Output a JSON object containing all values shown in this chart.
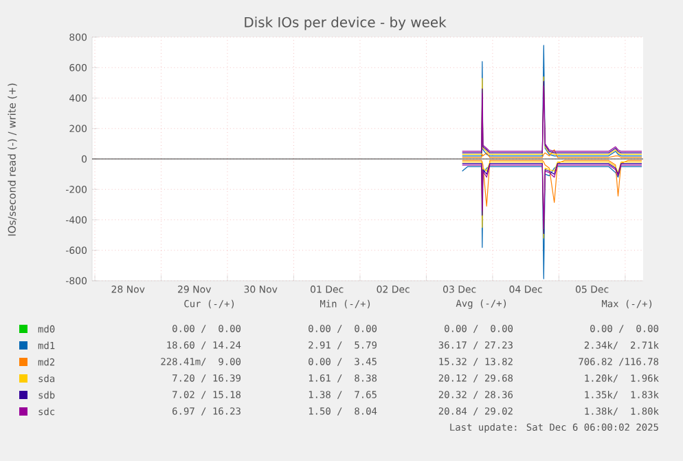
{
  "chart_data": {
    "type": "line",
    "title": "Disk IOs per device - by week",
    "ylabel": "IOs/second read (-) / write (+)",
    "x": [
      "2025-12-03T13:00",
      "2025-12-03T15:00",
      "2025-12-03T17:00",
      "2025-12-03T19:00",
      "2025-12-03T20:00",
      "2025-12-03T20:15",
      "2025-12-03T20:30",
      "2025-12-03T21:50",
      "2025-12-03T23:00",
      "2025-12-04T01:00",
      "2025-12-04T04:00",
      "2025-12-04T07:00",
      "2025-12-04T10:00",
      "2025-12-04T13:00",
      "2025-12-04T16:00",
      "2025-12-04T18:00",
      "2025-12-04T18:30",
      "2025-12-04T19:00",
      "2025-12-04T20:30",
      "2025-12-04T22:20",
      "2025-12-04T23:30",
      "2025-12-05T02:00",
      "2025-12-05T06:00",
      "2025-12-05T10:00",
      "2025-12-05T14:00",
      "2025-12-05T18:00",
      "2025-12-05T20:30",
      "2025-12-05T21:25",
      "2025-12-05T22:30",
      "2025-12-06T01:00",
      "2025-12-06T04:00",
      "2025-12-06T06:00"
    ],
    "series": [
      {
        "name": "md0",
        "color": "#00cc00",
        "values": [
          null,
          null,
          null,
          null,
          null,
          null,
          null,
          null,
          null,
          null,
          null,
          null,
          null,
          null,
          null,
          null,
          null,
          null,
          null,
          null,
          null,
          null,
          null,
          null,
          null,
          null,
          null,
          null,
          null,
          null,
          null,
          null
        ]
      },
      {
        "name": "md1",
        "color": "#0066b3",
        "values": [
          20,
          20,
          20,
          20,
          20,
          640,
          60,
          30,
          20,
          20,
          20,
          20,
          20,
          20,
          20,
          20,
          746,
          70,
          30,
          20,
          20,
          20,
          20,
          20,
          20,
          20,
          50,
          30,
          20,
          20,
          20,
          20
        ]
      },
      {
        "color": "#0066b3",
        "values": [
          -80,
          -50,
          -50,
          -50,
          -50,
          -582,
          -100,
          -60,
          -50,
          -50,
          -50,
          -50,
          -50,
          -50,
          -50,
          -50,
          -787,
          -100,
          -110,
          -60,
          -50,
          -50,
          -50,
          -50,
          -50,
          -50,
          -90,
          -120,
          -50,
          -50,
          -50,
          -50
        ]
      },
      {
        "name": "md2",
        "color": "#ff8000",
        "values": [
          10,
          10,
          10,
          10,
          10,
          30,
          20,
          40,
          10,
          10,
          10,
          10,
          10,
          10,
          10,
          10,
          30,
          40,
          20,
          60,
          10,
          10,
          10,
          10,
          10,
          10,
          20,
          20,
          10,
          10,
          10,
          10
        ]
      },
      {
        "color": "#ff8000",
        "values": [
          -10,
          -10,
          -10,
          -10,
          -10,
          -20,
          -40,
          -310,
          -10,
          -10,
          -10,
          -10,
          -10,
          -10,
          -10,
          -10,
          -20,
          -40,
          -60,
          -286,
          -30,
          -10,
          -10,
          -10,
          -10,
          -10,
          -40,
          -244,
          -30,
          -10,
          -10,
          -10
        ]
      },
      {
        "name": "sda",
        "color": "#ffcc00",
        "values": [
          30,
          30,
          30,
          30,
          30,
          530,
          70,
          50,
          30,
          30,
          30,
          30,
          30,
          30,
          30,
          30,
          540,
          80,
          40,
          30,
          30,
          30,
          30,
          30,
          30,
          30,
          60,
          40,
          30,
          30,
          30,
          30
        ]
      },
      {
        "color": "#ffcc00",
        "values": [
          -20,
          -20,
          -20,
          -20,
          -20,
          -450,
          -60,
          -80,
          -20,
          -20,
          -20,
          -20,
          -20,
          -20,
          -20,
          -20,
          -520,
          -60,
          -70,
          -80,
          -20,
          -20,
          -20,
          -20,
          -20,
          -20,
          -50,
          -90,
          -20,
          -20,
          -20,
          -20
        ]
      },
      {
        "name": "sdb",
        "color": "#330099",
        "values": [
          40,
          40,
          40,
          40,
          40,
          460,
          80,
          60,
          40,
          40,
          40,
          40,
          40,
          40,
          40,
          40,
          510,
          90,
          50,
          40,
          40,
          40,
          40,
          40,
          40,
          40,
          70,
          50,
          40,
          40,
          40,
          40
        ]
      },
      {
        "color": "#330099",
        "values": [
          -30,
          -30,
          -30,
          -30,
          -30,
          -370,
          -70,
          -100,
          -30,
          -30,
          -30,
          -30,
          -30,
          -30,
          -30,
          -30,
          -490,
          -70,
          -80,
          -100,
          -30,
          -30,
          -30,
          -30,
          -30,
          -30,
          -60,
          -100,
          -30,
          -30,
          -30,
          -30
        ]
      },
      {
        "name": "sdc",
        "color": "#990099",
        "values": [
          50,
          50,
          50,
          50,
          50,
          430,
          90,
          70,
          50,
          50,
          50,
          50,
          50,
          50,
          50,
          50,
          480,
          100,
          60,
          50,
          50,
          50,
          50,
          50,
          50,
          50,
          80,
          60,
          50,
          50,
          50,
          50
        ]
      },
      {
        "color": "#990099",
        "values": [
          -40,
          -40,
          -40,
          -40,
          -40,
          -340,
          -80,
          -120,
          -40,
          -40,
          -40,
          -40,
          -40,
          -40,
          -40,
          -40,
          -460,
          -80,
          -90,
          -120,
          -40,
          -40,
          -40,
          -40,
          -40,
          -40,
          -70,
          -110,
          -40,
          -40,
          -40,
          -40
        ]
      }
    ],
    "xlim": [
      "2025-11-27T23:00",
      "2025-12-06T06:30"
    ],
    "xticks": [
      {
        "value": "2025-11-28T00:00",
        "label": null
      },
      {
        "value": "2025-11-28T12:00",
        "label": "28 Nov"
      },
      {
        "value": "2025-11-29T00:00",
        "label": null
      },
      {
        "value": "2025-11-29T12:00",
        "label": "29 Nov"
      },
      {
        "value": "2025-11-30T00:00",
        "label": null
      },
      {
        "value": "2025-11-30T12:00",
        "label": "30 Nov"
      },
      {
        "value": "2025-12-01T00:00",
        "label": null
      },
      {
        "value": "2025-12-01T12:00",
        "label": "01 Dec"
      },
      {
        "value": "2025-12-02T00:00",
        "label": null
      },
      {
        "value": "2025-12-02T12:00",
        "label": "02 Dec"
      },
      {
        "value": "2025-12-03T00:00",
        "label": null
      },
      {
        "value": "2025-12-03T12:00",
        "label": "03 Dec"
      },
      {
        "value": "2025-12-04T00:00",
        "label": null
      },
      {
        "value": "2025-12-04T12:00",
        "label": "04 Dec"
      },
      {
        "value": "2025-12-05T00:00",
        "label": null
      },
      {
        "value": "2025-12-05T12:00",
        "label": "05 Dec"
      },
      {
        "value": "2025-12-06T00:00",
        "label": null
      }
    ],
    "ylim": [
      -800,
      800
    ],
    "yticks": [
      -800,
      -600,
      -400,
      -200,
      0,
      200,
      400,
      600,
      800
    ],
    "grid": true,
    "legend": "bottom",
    "ref_lines": [
      {
        "axis": "y",
        "value": 0,
        "color": "#000000"
      }
    ],
    "annotations": [
      "Cur (-/+)",
      "Min (-/+)",
      "Avg (-/+)",
      "Max (-/+)",
      "0.00 /  0.00",
      "0.00 /  0.00",
      "0.00 /  0.00",
      "0.00 /  0.00",
      "18.60 / 14.24",
      "2.91 /  5.79",
      "36.17 / 27.23",
      "2.34k/  2.71k",
      "228.41m/  9.00",
      "0.00 /  3.45",
      "15.32 / 13.82",
      "706.82 /116.78",
      "7.20 / 16.39",
      "1.61 /  8.38",
      "20.12 / 29.68",
      "1.20k/  1.96k",
      "7.02 / 15.18",
      "1.38 /  7.65",
      "20.32 / 28.36",
      "1.35k/  1.83k",
      "6.97 / 16.23",
      "1.50 /  8.04",
      "20.84 / 29.02",
      "1.38k/  1.80k",
      "Last update: Sat Dec  6 06:00:02 2025"
    ]
  }
}
